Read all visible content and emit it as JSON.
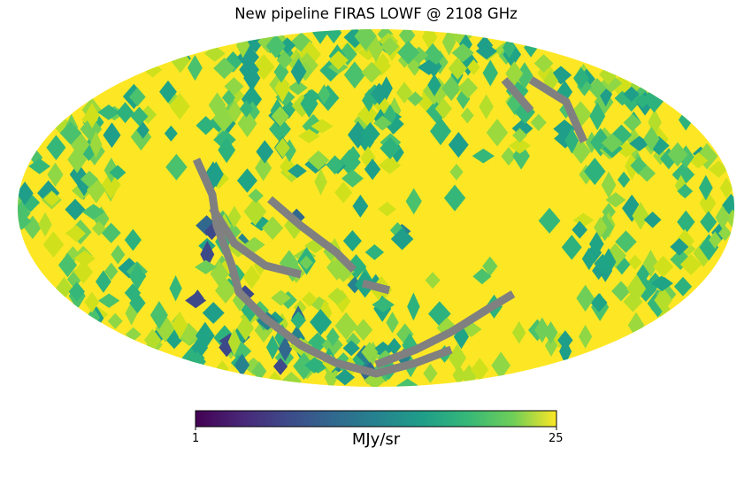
{
  "chart_data": {
    "type": "heatmap",
    "title": "New pipeline FIRAS LOWF @ 2108 GHz",
    "projection": "Mollweide",
    "colormap": "viridis",
    "colorbar": {
      "min": 1,
      "max": 25,
      "min_label": "1",
      "max_label": "25",
      "unit": "MJy/sr"
    },
    "missing_color": "#808080",
    "saturated_color": "#fde725"
  }
}
